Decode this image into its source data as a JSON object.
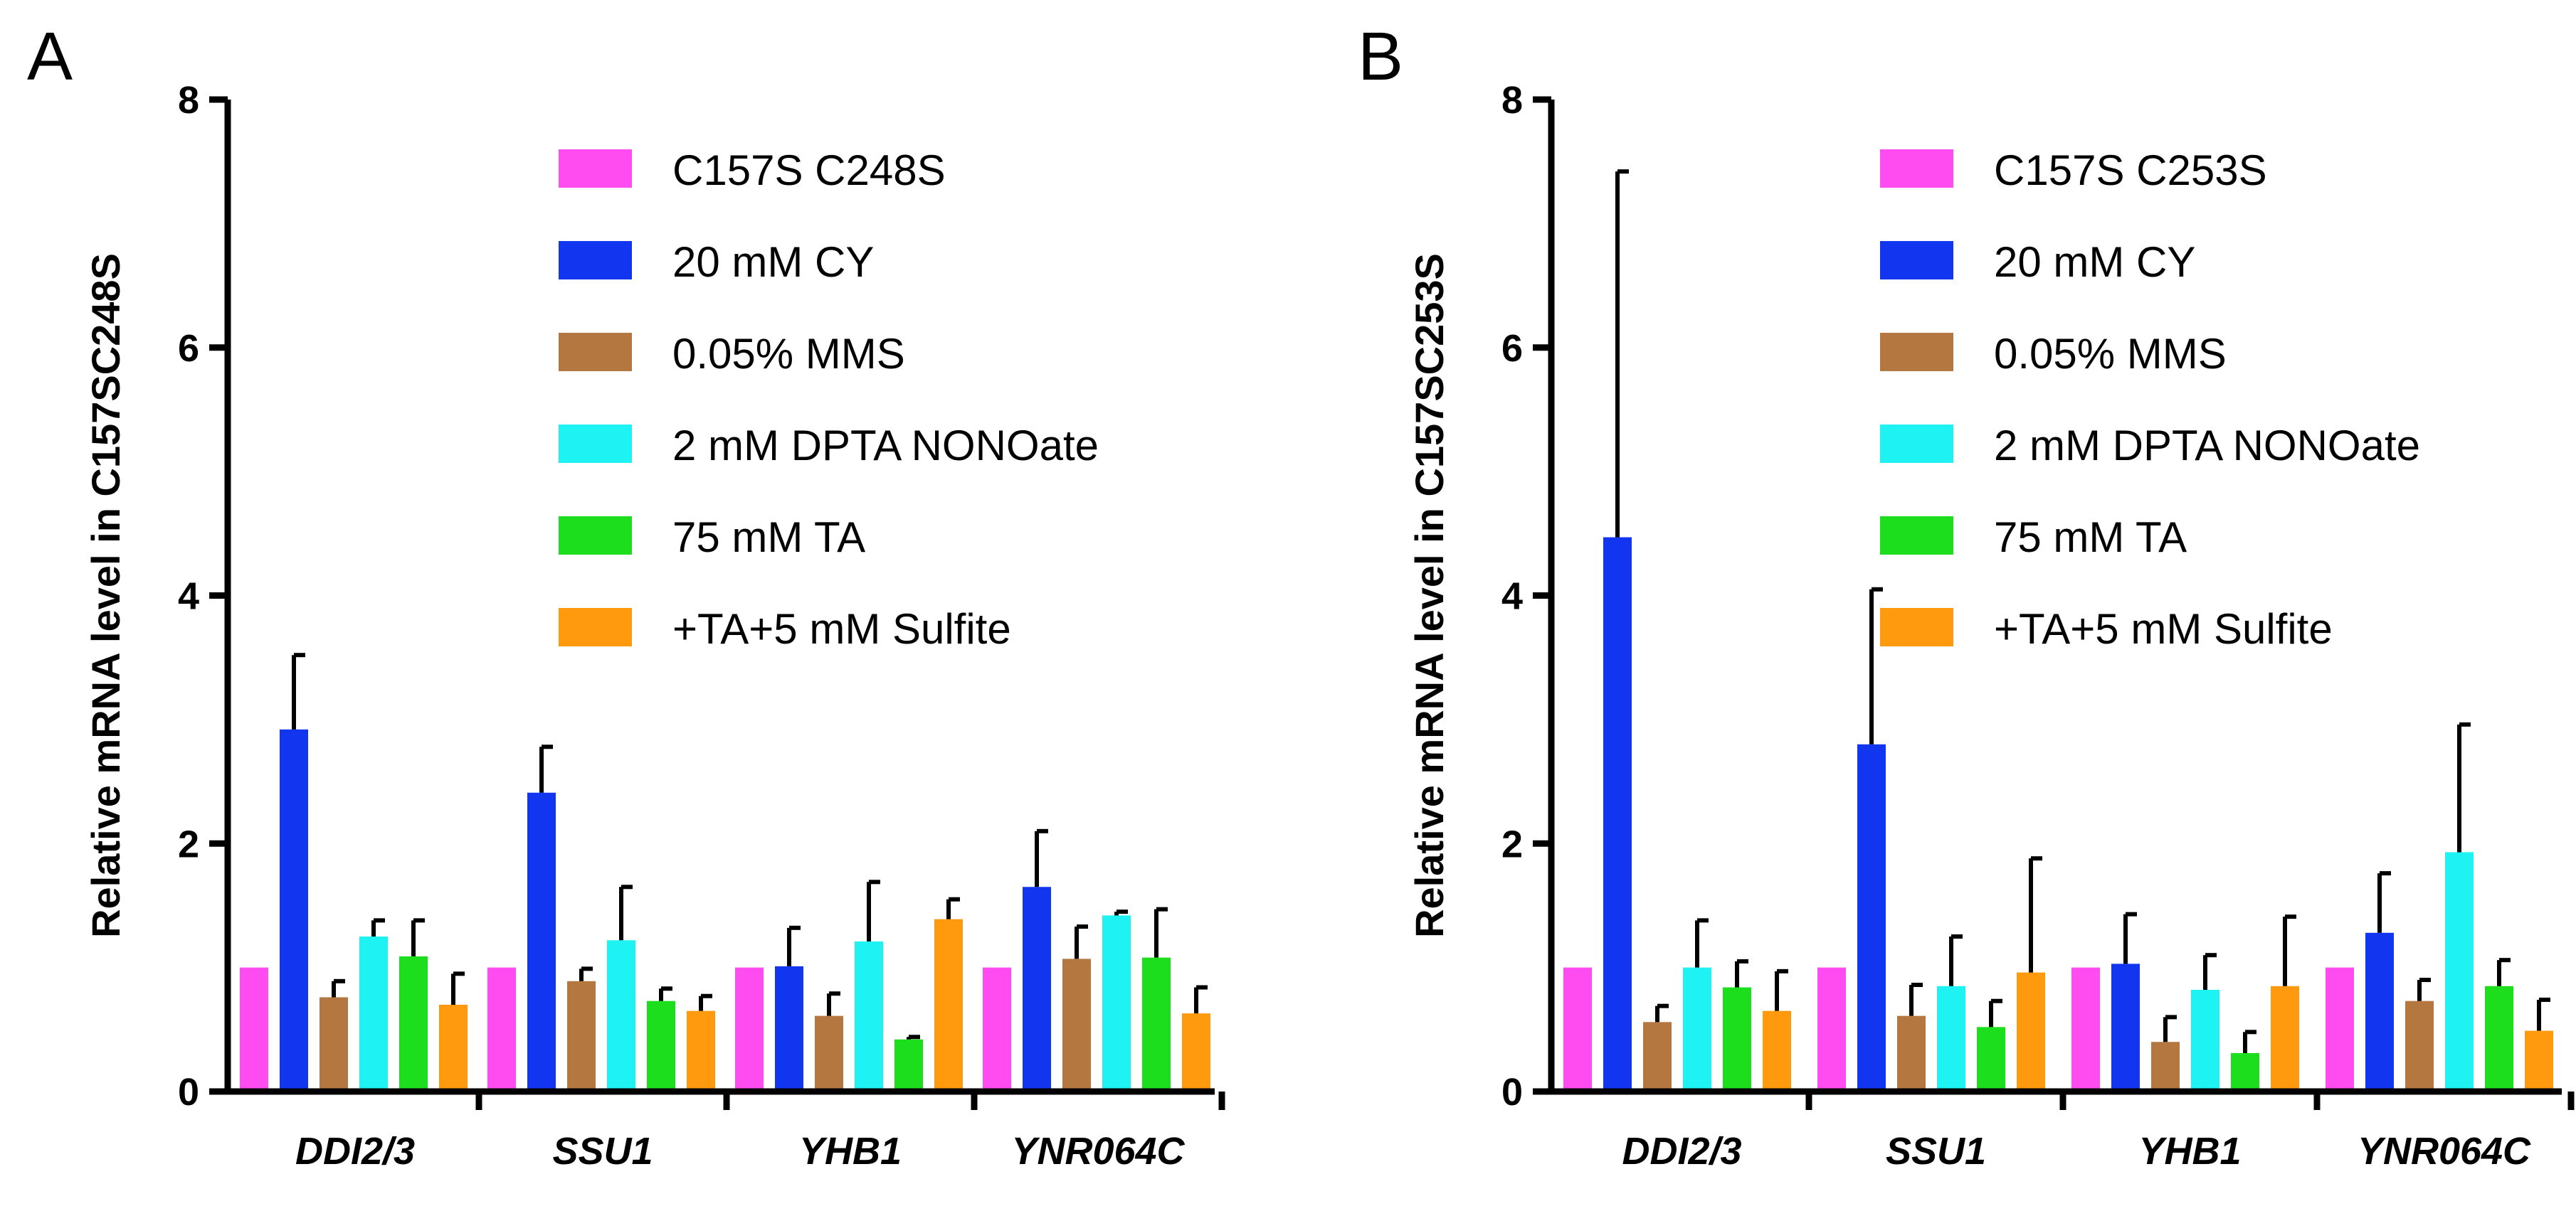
{
  "chart_data": [
    {
      "type": "bar",
      "panel_label": "A",
      "ylabel": "Relative mRNA level in C157SC248S",
      "ylim": [
        0,
        8
      ],
      "yticks": [
        0,
        2,
        4,
        6,
        8
      ],
      "categories": [
        "DDI2/3",
        "SSU1",
        "YHB1",
        "YNR064C"
      ],
      "series": [
        {
          "name": "C157S C248S",
          "color": "#ff4cf0",
          "values": [
            1.0,
            1.0,
            1.0,
            1.0
          ],
          "errors": [
            0,
            0,
            0,
            0
          ]
        },
        {
          "name": "20 mM CY",
          "color": "#1236f0",
          "values": [
            2.92,
            2.41,
            1.01,
            1.65
          ],
          "errors": [
            0.6,
            0.37,
            0.31,
            0.45
          ]
        },
        {
          "name": "0.05% MMS",
          "color": "#b4773f",
          "values": [
            0.76,
            0.89,
            0.61,
            1.07
          ],
          "errors": [
            0.13,
            0.1,
            0.18,
            0.26
          ]
        },
        {
          "name": "2 mM DPTA NONOate",
          "color": "#1ef2f2",
          "values": [
            1.25,
            1.22,
            1.21,
            1.42
          ],
          "errors": [
            0.13,
            0.43,
            0.48,
            0.03
          ]
        },
        {
          "name": "75 mM TA",
          "color": "#1dde1d",
          "values": [
            1.09,
            0.73,
            0.42,
            1.08
          ],
          "errors": [
            0.29,
            0.1,
            0.02,
            0.39
          ]
        },
        {
          "name": "+TA+5 mM Sulfite",
          "color": "#ff9a0f",
          "values": [
            0.7,
            0.65,
            1.39,
            0.63
          ],
          "errors": [
            0.25,
            0.12,
            0.16,
            0.21
          ]
        }
      ]
    },
    {
      "type": "bar",
      "panel_label": "B",
      "ylabel": "Relative mRNA level in C157SC253S",
      "ylim": [
        0,
        8
      ],
      "yticks": [
        0,
        2,
        4,
        6,
        8
      ],
      "categories": [
        "DDI2/3",
        "SSU1",
        "YHB1",
        "YNR064C"
      ],
      "series": [
        {
          "name": "C157S C253S",
          "color": "#ff4cf0",
          "values": [
            1.0,
            1.0,
            1.0,
            1.0
          ],
          "errors": [
            0,
            0,
            0,
            0
          ]
        },
        {
          "name": "20 mM CY",
          "color": "#1236f0",
          "values": [
            4.47,
            2.8,
            1.03,
            1.28
          ],
          "errors": [
            2.95,
            1.25,
            0.4,
            0.48
          ]
        },
        {
          "name": "0.05% MMS",
          "color": "#b4773f",
          "values": [
            0.56,
            0.61,
            0.4,
            0.73
          ],
          "errors": [
            0.13,
            0.25,
            0.2,
            0.17
          ]
        },
        {
          "name": "2 mM DPTA NONOate",
          "color": "#1ef2f2",
          "values": [
            1.0,
            0.85,
            0.82,
            1.93
          ],
          "errors": [
            0.38,
            0.4,
            0.28,
            1.03
          ]
        },
        {
          "name": "75 mM TA",
          "color": "#1dde1d",
          "values": [
            0.84,
            0.52,
            0.31,
            0.85
          ],
          "errors": [
            0.21,
            0.21,
            0.17,
            0.21
          ]
        },
        {
          "name": "+TA+5 mM Sulfite",
          "color": "#ff9a0f",
          "values": [
            0.65,
            0.96,
            0.85,
            0.49
          ],
          "errors": [
            0.32,
            0.92,
            0.56,
            0.25
          ]
        }
      ]
    }
  ]
}
